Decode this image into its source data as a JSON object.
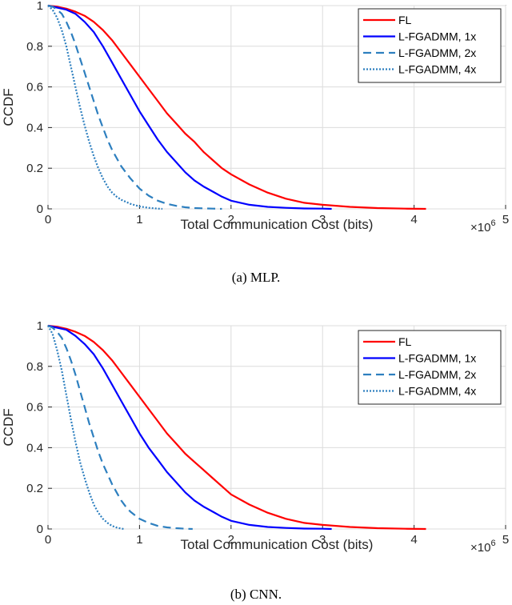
{
  "chart_data": [
    {
      "type": "line",
      "id": "mlp",
      "caption": "(a)  MLP.",
      "xlabel": "Total Communication Cost (bits)",
      "ylabel": "CCDF",
      "x_exponent": {
        "base": "×10",
        "power": "6"
      },
      "xlim": [
        0,
        5
      ],
      "ylim": [
        0,
        1
      ],
      "xticks": [
        0,
        1,
        2,
        3,
        4,
        5
      ],
      "yticks": [
        0,
        0.2,
        0.4,
        0.6,
        0.8,
        1
      ],
      "ytick_labels": [
        "0",
        "0.2",
        "0.4",
        "0.6",
        "0.8",
        "1"
      ],
      "grid": true,
      "legend_position": "top-right",
      "series": [
        {
          "name": "FL",
          "color": "#ff0000",
          "style": "solid",
          "x": [
            0,
            0.1,
            0.2,
            0.3,
            0.4,
            0.5,
            0.6,
            0.7,
            0.8,
            0.9,
            1.0,
            1.1,
            1.2,
            1.3,
            1.4,
            1.5,
            1.6,
            1.7,
            1.8,
            1.9,
            2.0,
            2.2,
            2.4,
            2.6,
            2.8,
            3.0,
            3.3,
            3.6,
            3.9,
            4.13
          ],
          "y": [
            1,
            0.995,
            0.985,
            0.97,
            0.95,
            0.92,
            0.88,
            0.83,
            0.77,
            0.71,
            0.65,
            0.59,
            0.53,
            0.47,
            0.42,
            0.37,
            0.33,
            0.28,
            0.24,
            0.2,
            0.17,
            0.12,
            0.08,
            0.05,
            0.03,
            0.02,
            0.01,
            0.004,
            0.001,
            0
          ]
        },
        {
          "name": "L-FGADMM, 1x",
          "color": "#0000ff",
          "style": "solid",
          "x": [
            0,
            0.1,
            0.2,
            0.3,
            0.4,
            0.5,
            0.6,
            0.7,
            0.8,
            0.9,
            1.0,
            1.1,
            1.2,
            1.3,
            1.4,
            1.5,
            1.6,
            1.7,
            1.8,
            1.9,
            2.0,
            2.2,
            2.4,
            2.6,
            2.8,
            3.0,
            3.1
          ],
          "y": [
            1,
            0.99,
            0.98,
            0.96,
            0.92,
            0.87,
            0.8,
            0.72,
            0.64,
            0.56,
            0.48,
            0.41,
            0.34,
            0.28,
            0.23,
            0.18,
            0.14,
            0.11,
            0.085,
            0.06,
            0.04,
            0.02,
            0.01,
            0.005,
            0.002,
            0.001,
            0
          ]
        },
        {
          "name": "L-FGADMM, 2x",
          "color": "#2d7fbf",
          "style": "dashed",
          "x": [
            0,
            0.05,
            0.1,
            0.15,
            0.2,
            0.25,
            0.3,
            0.35,
            0.4,
            0.45,
            0.5,
            0.55,
            0.6,
            0.65,
            0.7,
            0.75,
            0.8,
            0.85,
            0.9,
            1.0,
            1.1,
            1.2,
            1.3,
            1.4,
            1.5,
            1.6,
            1.8,
            1.9
          ],
          "y": [
            1,
            0.995,
            0.98,
            0.96,
            0.92,
            0.87,
            0.81,
            0.74,
            0.67,
            0.6,
            0.53,
            0.46,
            0.4,
            0.34,
            0.29,
            0.25,
            0.21,
            0.18,
            0.15,
            0.1,
            0.065,
            0.04,
            0.025,
            0.015,
            0.008,
            0.004,
            0.001,
            0
          ]
        },
        {
          "name": "L-FGADMM, 4x",
          "color": "#2d7fbf",
          "style": "dotted",
          "x": [
            0,
            0.05,
            0.1,
            0.15,
            0.2,
            0.25,
            0.3,
            0.35,
            0.4,
            0.45,
            0.5,
            0.55,
            0.6,
            0.65,
            0.7,
            0.75,
            0.8,
            0.9,
            1.0,
            1.1,
            1.2,
            1.25
          ],
          "y": [
            1,
            0.98,
            0.94,
            0.88,
            0.8,
            0.7,
            0.6,
            0.5,
            0.41,
            0.33,
            0.26,
            0.2,
            0.15,
            0.11,
            0.08,
            0.06,
            0.045,
            0.025,
            0.012,
            0.005,
            0.001,
            0
          ]
        }
      ]
    },
    {
      "type": "line",
      "id": "cnn",
      "caption": "(b)  CNN.",
      "xlabel": "Total Communication Cost (bits)",
      "ylabel": "CCDF",
      "x_exponent": {
        "base": "×10",
        "power": "6"
      },
      "xlim": [
        0,
        5
      ],
      "ylim": [
        0,
        1
      ],
      "xticks": [
        0,
        1,
        2,
        3,
        4,
        5
      ],
      "yticks": [
        0,
        0.2,
        0.4,
        0.6,
        0.8,
        1
      ],
      "ytick_labels": [
        "0",
        "0.2",
        "0.4",
        "0.6",
        "0.8",
        "1"
      ],
      "grid": true,
      "legend_position": "top-right",
      "series": [
        {
          "name": "FL",
          "color": "#ff0000",
          "style": "solid",
          "x": [
            0,
            0.1,
            0.2,
            0.3,
            0.4,
            0.5,
            0.6,
            0.7,
            0.8,
            0.9,
            1.0,
            1.1,
            1.2,
            1.3,
            1.4,
            1.5,
            1.6,
            1.7,
            1.8,
            1.9,
            2.0,
            2.2,
            2.4,
            2.6,
            2.8,
            3.0,
            3.3,
            3.6,
            3.9,
            4.13
          ],
          "y": [
            1,
            0.995,
            0.985,
            0.97,
            0.95,
            0.92,
            0.88,
            0.83,
            0.77,
            0.71,
            0.65,
            0.59,
            0.53,
            0.47,
            0.42,
            0.37,
            0.33,
            0.29,
            0.25,
            0.21,
            0.17,
            0.12,
            0.08,
            0.05,
            0.03,
            0.02,
            0.01,
            0.004,
            0.001,
            0
          ]
        },
        {
          "name": "L-FGADMM, 1x",
          "color": "#0000ff",
          "style": "solid",
          "x": [
            0,
            0.1,
            0.2,
            0.3,
            0.4,
            0.5,
            0.6,
            0.7,
            0.8,
            0.9,
            1.0,
            1.1,
            1.2,
            1.3,
            1.4,
            1.5,
            1.6,
            1.7,
            1.8,
            1.9,
            2.0,
            2.2,
            2.4,
            2.6,
            2.8,
            3.0,
            3.1
          ],
          "y": [
            1,
            0.99,
            0.98,
            0.95,
            0.91,
            0.86,
            0.79,
            0.71,
            0.63,
            0.55,
            0.47,
            0.4,
            0.34,
            0.28,
            0.23,
            0.18,
            0.14,
            0.11,
            0.085,
            0.06,
            0.04,
            0.02,
            0.01,
            0.005,
            0.002,
            0.001,
            0
          ]
        },
        {
          "name": "L-FGADMM, 2x",
          "color": "#2d7fbf",
          "style": "dashed",
          "x": [
            0,
            0.05,
            0.1,
            0.15,
            0.2,
            0.25,
            0.3,
            0.35,
            0.4,
            0.45,
            0.5,
            0.55,
            0.6,
            0.65,
            0.7,
            0.75,
            0.8,
            0.85,
            0.9,
            1.0,
            1.1,
            1.2,
            1.3,
            1.4,
            1.5,
            1.58
          ],
          "y": [
            1,
            0.99,
            0.97,
            0.94,
            0.89,
            0.83,
            0.76,
            0.68,
            0.6,
            0.52,
            0.45,
            0.38,
            0.32,
            0.27,
            0.22,
            0.18,
            0.14,
            0.11,
            0.085,
            0.05,
            0.03,
            0.015,
            0.008,
            0.004,
            0.001,
            0
          ]
        },
        {
          "name": "L-FGADMM, 4x",
          "color": "#2d7fbf",
          "style": "dotted",
          "x": [
            0,
            0.05,
            0.1,
            0.15,
            0.2,
            0.25,
            0.3,
            0.35,
            0.4,
            0.45,
            0.5,
            0.55,
            0.6,
            0.65,
            0.7,
            0.75,
            0.8,
            0.83
          ],
          "y": [
            1,
            0.96,
            0.88,
            0.78,
            0.66,
            0.54,
            0.43,
            0.33,
            0.25,
            0.18,
            0.12,
            0.08,
            0.05,
            0.03,
            0.015,
            0.007,
            0.002,
            0
          ]
        }
      ]
    }
  ]
}
